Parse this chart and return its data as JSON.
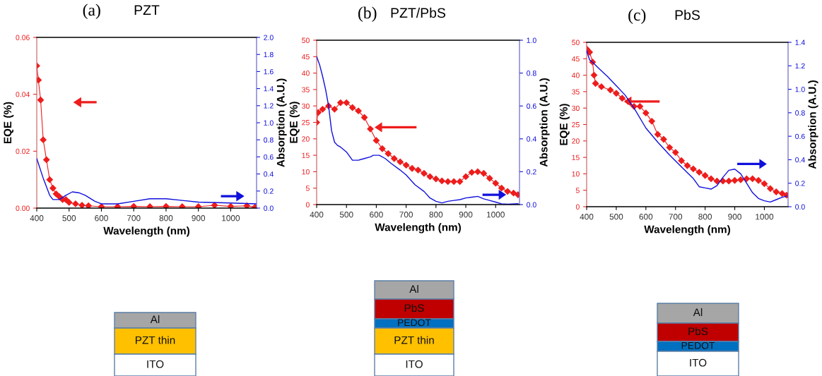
{
  "chart_data": [
    {
      "type": "line",
      "title": "PZT",
      "xlabel": "Wavelength (nm)",
      "ylabel": "EQE (%)",
      "y2label": "Absorption (A.U.)",
      "annotations": [
        "(a)",
        "Al",
        "PZT thin",
        "ITO"
      ],
      "xlim": [
        400,
        1080
      ],
      "xticks": [
        400,
        500,
        600,
        700,
        800,
        900,
        1000
      ],
      "ylim": [
        0,
        0.06
      ],
      "yticks": [
        {
          "value": 0,
          "label": "0.00"
        },
        {
          "value": 0.02,
          "label": "0.02"
        },
        {
          "value": 0.04,
          "label": "0.04"
        },
        {
          "value": 0.06,
          "label": "0.06"
        }
      ],
      "y2lim": [
        0,
        2.0
      ],
      "y2ticks": [
        {
          "value": 0,
          "label": "0.0"
        },
        {
          "value": 0.2,
          "label": "0.2"
        },
        {
          "value": 0.4,
          "label": "0.4"
        },
        {
          "value": 0.6,
          "label": "0.6"
        },
        {
          "value": 0.8,
          "label": "0.8"
        },
        {
          "value": 1.0,
          "label": "1.0"
        },
        {
          "value": 1.2,
          "label": "1.2"
        },
        {
          "value": 1.4,
          "label": "1.4"
        },
        {
          "value": 1.6,
          "label": "1.6"
        },
        {
          "value": 1.8,
          "label": "1.8"
        },
        {
          "value": 2.0,
          "label": "2.0"
        }
      ],
      "grid": false,
      "legend": false,
      "series": [
        {
          "color": "#ee1c1c",
          "marker": "diamond",
          "x": [
            400,
            405,
            412,
            420,
            430,
            440,
            450,
            460,
            470,
            480,
            490,
            500,
            520,
            540,
            560,
            600,
            650,
            700,
            750,
            800,
            850,
            900,
            950,
            1000,
            1050,
            1075
          ],
          "values": [
            0.05,
            0.045,
            0.038,
            0.024,
            0.017,
            0.01,
            0.007,
            0.005,
            0.004,
            0.003,
            0.003,
            0.002,
            0.0015,
            0.001,
            0.0008,
            0.0005,
            0.0005,
            0.0006,
            0.0005,
            0.0006,
            0.0005,
            0.0005,
            0.001,
            0.0006,
            0.0008,
            0.0003
          ]
        },
        {
          "color": "#1010dd",
          "axis": "y2",
          "marker": "none",
          "x": [
            400,
            420,
            440,
            450,
            470,
            490,
            510,
            530,
            550,
            580,
            600,
            650,
            700,
            750,
            800,
            850,
            900,
            1000,
            1080
          ],
          "values": [
            0.58,
            0.35,
            0.15,
            0.1,
            0.1,
            0.15,
            0.19,
            0.18,
            0.15,
            0.08,
            0.05,
            0.05,
            0.08,
            0.11,
            0.11,
            0.09,
            0.07,
            0.06,
            0.05
          ]
        }
      ]
    },
    {
      "type": "line",
      "title": "PZT/PbS",
      "xlabel": "Wavelength (nm)",
      "ylabel": "EQE (%)",
      "y2label": "Absorption (A.U.)",
      "annotations": [
        "(b)",
        "Al",
        "PbS",
        "PEDOT",
        "PZT thin",
        "ITO"
      ],
      "xlim": [
        400,
        1080
      ],
      "xticks": [
        400,
        500,
        600,
        700,
        800,
        900,
        1000
      ],
      "ylim": [
        0,
        50
      ],
      "yticks": [
        0,
        5,
        10,
        15,
        20,
        25,
        30,
        35,
        40,
        45,
        50
      ],
      "y2lim": [
        0,
        1.0
      ],
      "y2ticks": [
        {
          "value": 0,
          "label": "0.0"
        },
        {
          "value": 0.2,
          "label": "0.2"
        },
        {
          "value": 0.4,
          "label": "0.4"
        },
        {
          "value": 0.6,
          "label": "0.6"
        },
        {
          "value": 0.8,
          "label": "0.8"
        },
        {
          "value": 1.0,
          "label": "1.0"
        }
      ],
      "grid": false,
      "legend": false,
      "series": [
        {
          "color": "#ee1c1c",
          "marker": "diamond",
          "x": [
            400,
            405,
            420,
            440,
            460,
            480,
            500,
            520,
            540,
            560,
            580,
            600,
            620,
            640,
            660,
            680,
            700,
            720,
            740,
            760,
            780,
            800,
            820,
            840,
            860,
            880,
            900,
            920,
            940,
            960,
            980,
            1000,
            1020,
            1040,
            1060,
            1075
          ],
          "values": [
            25,
            28,
            29,
            30,
            29,
            31,
            31,
            29.5,
            28.5,
            26.5,
            23,
            19.5,
            17,
            15.5,
            14,
            13,
            12,
            11,
            10.5,
            9.5,
            8.5,
            7.8,
            7.2,
            7,
            7,
            7,
            8.5,
            9.8,
            10,
            9.5,
            8,
            6.5,
            5,
            4,
            3.5,
            3
          ]
        },
        {
          "color": "#1010dd",
          "axis": "y2",
          "marker": "none",
          "x": [
            400,
            410,
            420,
            430,
            440,
            450,
            460,
            470,
            480,
            500,
            520,
            540,
            560,
            580,
            590,
            610,
            630,
            650,
            680,
            700,
            730,
            760,
            780,
            800,
            820,
            840,
            860,
            880,
            900,
            920,
            940,
            960,
            980,
            1000,
            1020,
            1040,
            1075
          ],
          "values": [
            0.9,
            0.85,
            0.78,
            0.7,
            0.6,
            0.45,
            0.38,
            0.36,
            0.35,
            0.32,
            0.27,
            0.27,
            0.28,
            0.29,
            0.3,
            0.3,
            0.28,
            0.25,
            0.21,
            0.18,
            0.12,
            0.08,
            0.04,
            0.02,
            0.01,
            0.02,
            0.025,
            0.03,
            0.04,
            0.045,
            0.05,
            0.035,
            0.025,
            0.015,
            0.005,
            0.002,
            0.005
          ]
        }
      ]
    },
    {
      "type": "line",
      "title": "PbS",
      "xlabel": "Wavelength (nm)",
      "ylabel": "EQE (%)",
      "y2label": "Absorption (A.U.)",
      "annotations": [
        "(c)",
        "Al",
        "PbS",
        "PEDOT",
        "ITO"
      ],
      "xlim": [
        400,
        1080
      ],
      "xticks": [
        400,
        500,
        600,
        700,
        800,
        900,
        1000
      ],
      "ylim": [
        0,
        50
      ],
      "yticks": [
        0,
        5,
        10,
        15,
        20,
        25,
        30,
        35,
        40,
        45,
        50
      ],
      "y2lim": [
        0,
        1.4
      ],
      "y2ticks": [
        {
          "value": 0,
          "label": "0.0"
        },
        {
          "value": 0.2,
          "label": "0.2"
        },
        {
          "value": 0.4,
          "label": "0.4"
        },
        {
          "value": 0.6,
          "label": "0.6"
        },
        {
          "value": 0.8,
          "label": "0.8"
        },
        {
          "value": 1.0,
          "label": "1.0"
        },
        {
          "value": 1.2,
          "label": "1.2"
        },
        {
          "value": 1.4,
          "label": "1.4"
        }
      ],
      "grid": false,
      "legend": false,
      "series": [
        {
          "color": "#ee1c1c",
          "marker": "diamond",
          "x": [
            400,
            410,
            420,
            425,
            430,
            450,
            480,
            500,
            520,
            540,
            560,
            580,
            600,
            620,
            640,
            660,
            680,
            700,
            720,
            740,
            760,
            780,
            800,
            820,
            840,
            860,
            880,
            900,
            920,
            940,
            960,
            980,
            1000,
            1020,
            1040,
            1060,
            1075
          ],
          "values": [
            48,
            47,
            44,
            40,
            37.5,
            36.5,
            35.5,
            34.5,
            33,
            32,
            30.5,
            30.5,
            28.5,
            26,
            22,
            20.5,
            18,
            16.5,
            14,
            12.5,
            11.5,
            10.5,
            9.5,
            8.5,
            7.8,
            7.8,
            7.8,
            8,
            8.2,
            8.5,
            8.5,
            8,
            7,
            5.5,
            4.5,
            4,
            3.5
          ]
        },
        {
          "color": "#1010dd",
          "axis": "y2",
          "marker": "none",
          "x": [
            400,
            410,
            420,
            440,
            470,
            500,
            530,
            560,
            600,
            640,
            680,
            720,
            760,
            780,
            800,
            820,
            840,
            860,
            880,
            900,
            920,
            940,
            960,
            980,
            1000,
            1020,
            1040,
            1060,
            1075
          ],
          "values": [
            1.33,
            1.25,
            1.23,
            1.18,
            1.11,
            1.03,
            0.95,
            0.84,
            0.67,
            0.55,
            0.44,
            0.34,
            0.24,
            0.17,
            0.16,
            0.15,
            0.18,
            0.25,
            0.31,
            0.32,
            0.28,
            0.2,
            0.12,
            0.07,
            0.05,
            0.04,
            0.06,
            0.08,
            0.09
          ]
        }
      ]
    }
  ]
}
